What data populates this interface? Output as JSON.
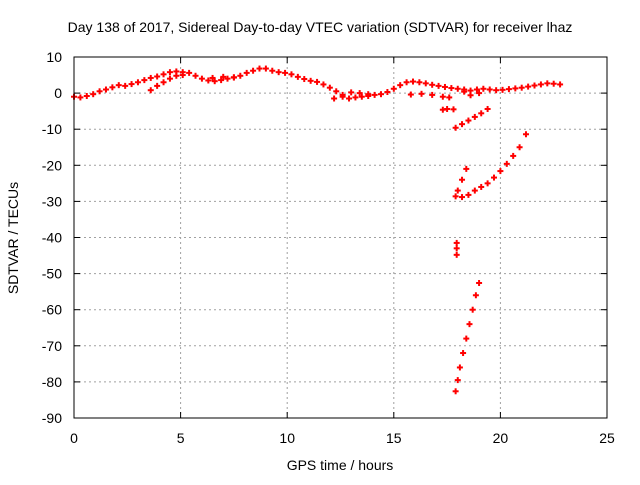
{
  "chart_data": {
    "type": "scatter",
    "title": "Day 138 of 2017, Sidereal Day-to-day VTEC variation (SDTVAR) for receiver lhaz",
    "xlabel": "GPS time / hours",
    "ylabel": "SDTVAR / TECUs",
    "xlim": [
      0,
      25
    ],
    "ylim": [
      -90,
      10
    ],
    "xticks": [
      0,
      5,
      10,
      15,
      20,
      25
    ],
    "yticks": [
      10,
      0,
      -10,
      -20,
      -30,
      -40,
      -50,
      -60,
      -70,
      -80,
      -90
    ],
    "grid": true,
    "legend": "none",
    "marker_color": "#ff0000",
    "series": [
      {
        "points": [
          [
            0.0,
            -1.0
          ],
          [
            0.3,
            -1.2
          ],
          [
            0.6,
            -0.8
          ],
          [
            0.9,
            -0.3
          ],
          [
            1.2,
            0.5
          ],
          [
            1.5,
            1.0
          ],
          [
            1.8,
            1.6
          ],
          [
            2.1,
            2.2
          ],
          [
            2.4,
            2.0
          ],
          [
            2.7,
            2.5
          ],
          [
            3.0,
            3.0
          ],
          [
            3.3,
            3.6
          ],
          [
            3.6,
            4.2
          ],
          [
            3.9,
            4.6
          ],
          [
            4.2,
            5.2
          ],
          [
            4.5,
            5.8
          ],
          [
            4.8,
            6.0
          ],
          [
            5.1,
            5.8
          ],
          [
            5.4,
            5.6
          ],
          [
            5.7,
            4.8
          ],
          [
            6.0,
            4.0
          ],
          [
            6.3,
            3.5
          ],
          [
            6.6,
            3.3
          ],
          [
            6.9,
            3.6
          ],
          [
            7.2,
            4.0
          ],
          [
            7.5,
            4.3
          ],
          [
            7.8,
            4.8
          ],
          [
            8.1,
            5.6
          ],
          [
            8.4,
            6.2
          ],
          [
            8.7,
            6.8
          ],
          [
            9.0,
            6.8
          ],
          [
            9.3,
            6.2
          ],
          [
            9.6,
            5.8
          ],
          [
            9.9,
            5.6
          ],
          [
            10.2,
            5.2
          ],
          [
            10.5,
            4.5
          ],
          [
            10.8,
            3.9
          ],
          [
            11.1,
            3.4
          ],
          [
            11.4,
            3.1
          ],
          [
            11.7,
            2.4
          ],
          [
            12.0,
            1.5
          ],
          [
            12.3,
            0.5
          ],
          [
            12.6,
            -0.5
          ],
          [
            12.9,
            -1.5
          ],
          [
            13.2,
            -1.2
          ],
          [
            13.5,
            -1.0
          ],
          [
            13.8,
            -0.8
          ],
          [
            14.1,
            -0.5
          ],
          [
            14.4,
            -0.3
          ],
          [
            14.7,
            0.3
          ],
          [
            15.0,
            1.2
          ],
          [
            15.3,
            2.2
          ],
          [
            15.6,
            3.0
          ],
          [
            15.9,
            3.2
          ],
          [
            16.2,
            3.0
          ],
          [
            16.5,
            2.7
          ],
          [
            16.8,
            2.3
          ],
          [
            17.1,
            2.0
          ],
          [
            17.4,
            1.7
          ],
          [
            17.7,
            1.4
          ],
          [
            18.0,
            1.2
          ],
          [
            18.3,
            1.0
          ],
          [
            18.6,
            0.7
          ],
          [
            18.9,
            1.0
          ],
          [
            19.2,
            1.2
          ],
          [
            19.5,
            1.0
          ],
          [
            19.8,
            0.8
          ],
          [
            20.1,
            0.9
          ],
          [
            20.4,
            1.1
          ],
          [
            20.7,
            1.3
          ],
          [
            21.0,
            1.5
          ],
          [
            21.3,
            1.8
          ],
          [
            21.6,
            2.1
          ],
          [
            21.9,
            2.4
          ],
          [
            22.2,
            2.7
          ],
          [
            22.5,
            2.6
          ],
          [
            22.8,
            2.4
          ]
        ]
      },
      {
        "points": [
          [
            3.6,
            0.8
          ],
          [
            3.9,
            2.0
          ],
          [
            4.2,
            3.0
          ],
          [
            4.5,
            4.0
          ],
          [
            4.8,
            4.8
          ],
          [
            5.1,
            5.0
          ],
          [
            6.5,
            4.2
          ],
          [
            7.0,
            4.5
          ],
          [
            7.5,
            4.4
          ],
          [
            12.2,
            -1.5
          ],
          [
            12.6,
            -1.0
          ],
          [
            13.0,
            0.2
          ],
          [
            13.4,
            0.0
          ],
          [
            13.8,
            -0.3
          ],
          [
            15.8,
            -0.4
          ],
          [
            16.3,
            -0.2
          ],
          [
            16.8,
            -0.5
          ],
          [
            17.3,
            -1.0
          ],
          [
            17.6,
            -1.2
          ],
          [
            18.3,
            0.4
          ],
          [
            18.6,
            -0.6
          ],
          [
            19.0,
            0.0
          ]
        ]
      },
      {
        "points": [
          [
            17.3,
            -4.6
          ],
          [
            17.5,
            -4.4
          ],
          [
            17.8,
            -4.5
          ],
          [
            17.9,
            -9.6
          ],
          [
            18.2,
            -8.6
          ],
          [
            18.5,
            -7.6
          ],
          [
            18.8,
            -6.6
          ],
          [
            19.1,
            -5.6
          ],
          [
            19.4,
            -4.4
          ]
        ]
      },
      {
        "points": [
          [
            17.9,
            -28.6
          ],
          [
            18.2,
            -28.8
          ],
          [
            18.5,
            -28.2
          ],
          [
            18.8,
            -27.0
          ],
          [
            19.1,
            -26.0
          ],
          [
            19.4,
            -25.0
          ],
          [
            19.7,
            -23.4
          ],
          [
            20.0,
            -21.6
          ],
          [
            20.3,
            -19.6
          ],
          [
            20.6,
            -17.4
          ],
          [
            20.9,
            -15.0
          ],
          [
            21.2,
            -11.4
          ],
          [
            18.0,
            -27.0
          ],
          [
            18.2,
            -24.0
          ],
          [
            18.4,
            -21.0
          ]
        ]
      },
      {
        "points": [
          [
            17.95,
            -41.5
          ],
          [
            17.95,
            -43.0
          ],
          [
            17.95,
            -44.8
          ]
        ]
      },
      {
        "points": [
          [
            17.9,
            -82.6
          ],
          [
            18.0,
            -79.5
          ],
          [
            18.1,
            -76.0
          ],
          [
            18.25,
            -72.0
          ],
          [
            18.4,
            -68.0
          ],
          [
            18.55,
            -64.0
          ],
          [
            18.7,
            -60.0
          ],
          [
            18.85,
            -56.0
          ],
          [
            19.0,
            -52.6
          ]
        ]
      }
    ]
  }
}
